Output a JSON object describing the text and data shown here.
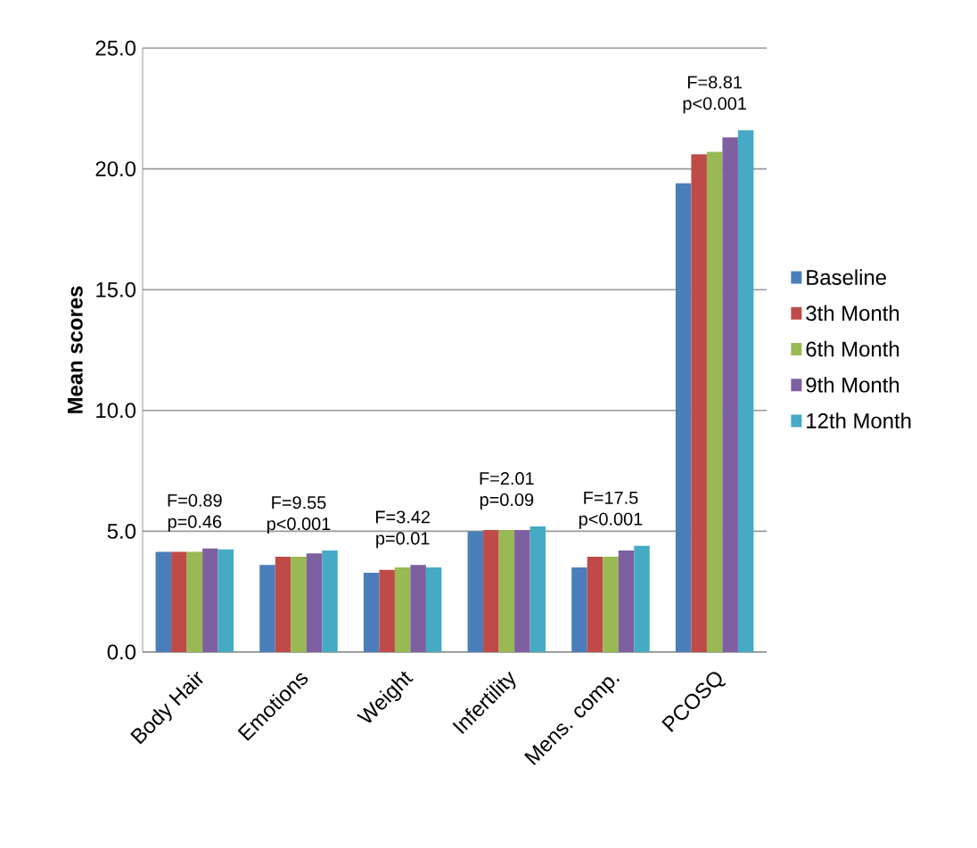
{
  "chart_data": {
    "type": "bar",
    "ylabel": "Mean scores",
    "categories": [
      "Body Hair",
      "Emotions",
      "Weight",
      "Infertility",
      "Mens. comp.",
      "PCOSQ"
    ],
    "series": [
      {
        "name": "Baseline",
        "color": "#4a7ebb",
        "values": [
          4.15,
          3.6,
          3.28,
          5.0,
          3.5,
          19.4
        ]
      },
      {
        "name": "3th Month",
        "color": "#be4b48",
        "values": [
          4.15,
          3.95,
          3.4,
          5.05,
          3.95,
          20.6
        ]
      },
      {
        "name": "6th Month",
        "color": "#98b954",
        "values": [
          4.15,
          3.95,
          3.5,
          5.05,
          3.95,
          20.7
        ]
      },
      {
        "name": "9th Month",
        "color": "#7d60a0",
        "values": [
          4.29,
          4.08,
          3.6,
          5.05,
          4.2,
          21.3
        ]
      },
      {
        "name": "12th Month",
        "color": "#46aac5",
        "values": [
          4.25,
          4.2,
          3.5,
          5.2,
          4.4,
          21.6
        ]
      }
    ],
    "ylim": [
      0,
      25
    ],
    "yticks": [
      {
        "value": 0,
        "label": "0.0"
      },
      {
        "value": 5,
        "label": "5.0"
      },
      {
        "value": 10,
        "label": "10.0"
      },
      {
        "value": 15,
        "label": "15.0"
      },
      {
        "value": 20,
        "label": "20.0"
      },
      {
        "value": 25,
        "label": "25.0"
      }
    ],
    "grid": "y",
    "legend": "right",
    "annotations": [
      {
        "text": "F=0.89 p=0.46",
        "x": "Body Hair",
        "y": 4.29
      },
      {
        "text": "F=9.55 p<0.001",
        "x": "Emotions",
        "y": 4.2
      },
      {
        "text": "F=3.42 p=0.01",
        "x": "Weight",
        "y": 3.6
      },
      {
        "text": "F=2.01 p=0.09",
        "x": "Infertility",
        "y": 5.2
      },
      {
        "text": "F=17.5 p<0.001",
        "x": "Mens. comp.",
        "y": 4.4
      },
      {
        "text": "F=8.81 p<0.001",
        "x": "PCOSQ",
        "y": 21.6
      }
    ]
  }
}
